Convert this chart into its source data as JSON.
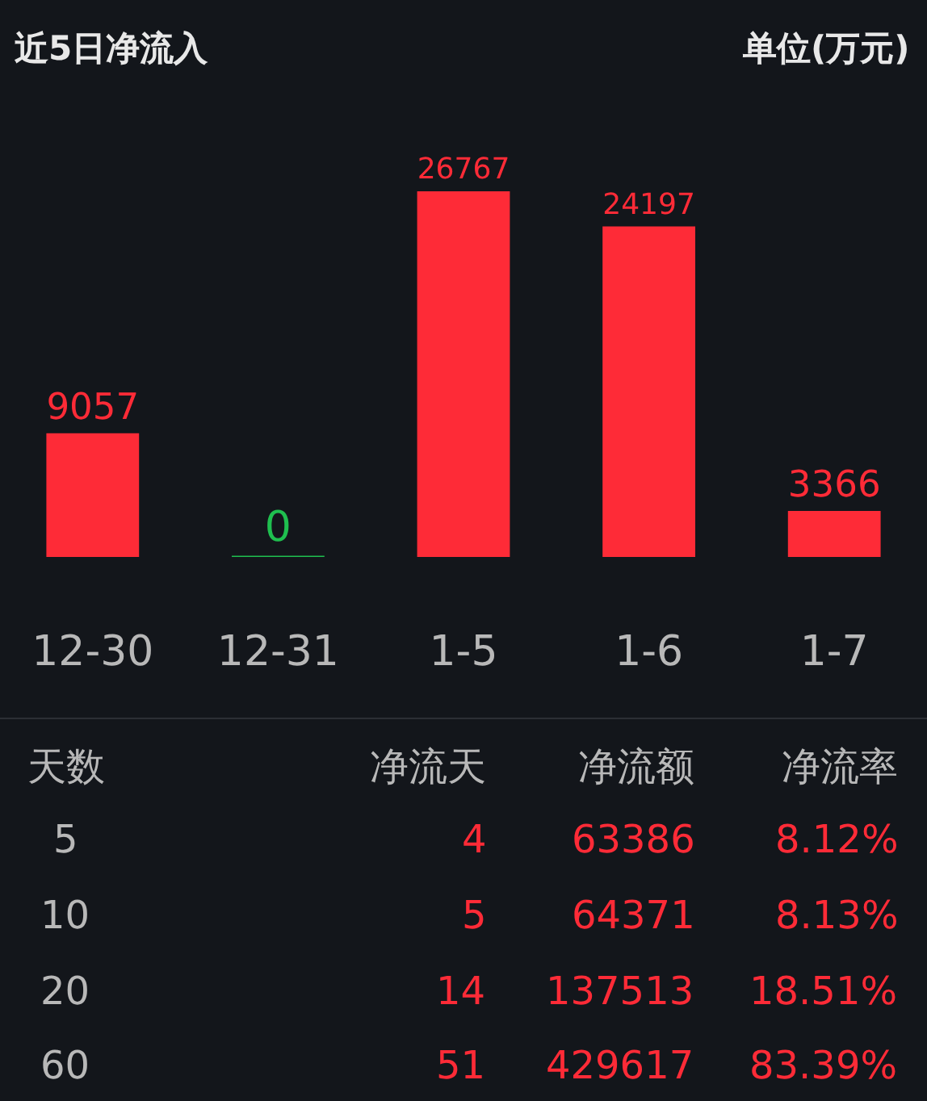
{
  "chart_data": {
    "type": "bar",
    "title": "近5日净流入",
    "subtitle": "单位(万元)",
    "categories": [
      "12-30",
      "12-31",
      "1-5",
      "1-6",
      "1-7"
    ],
    "values": [
      9057,
      0,
      26767,
      24197,
      3366
    ],
    "colors": [
      "#fe2b37",
      "#1fbf4f",
      "#fe2b37",
      "#fe2b37",
      "#fe2b37"
    ],
    "data_labels": true,
    "grid": false,
    "legend": false,
    "annotations": [
      "天数",
      "净流天",
      "净流额",
      "净流率",
      "5",
      "4",
      "63386",
      "8.12%",
      "10",
      "5",
      "64371",
      "8.13%",
      "20",
      "14",
      "137513",
      "18.51%",
      "60",
      "51",
      "429617",
      "83.39%"
    ]
  }
}
